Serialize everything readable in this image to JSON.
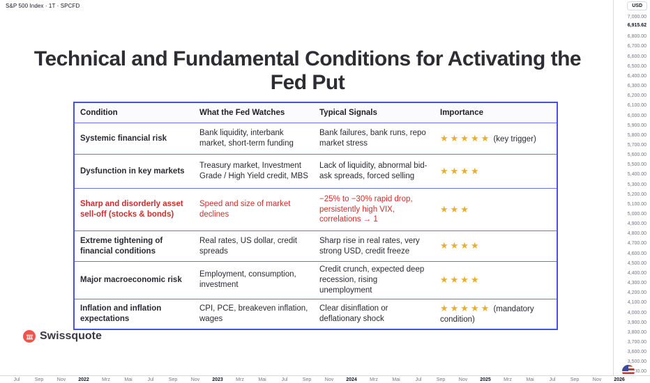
{
  "window": {
    "symbol_label": "S&P 500 Index · 1T · SPCFD"
  },
  "title": "Technical and Fundamental Conditions for Activating the Fed Put",
  "table": {
    "headers": [
      "Condition",
      "What the Fed Watches",
      "Typical Signals",
      "Importance"
    ],
    "rows": [
      {
        "condition": "Systemic financial risk",
        "watches": "Bank liquidity, interbank market, short-term funding",
        "signals": "Bank failures, bank runs, repo market stress",
        "stars": 5,
        "note": "(key trigger)",
        "highlight": false
      },
      {
        "condition": "Dysfunction in key markets",
        "watches": "Treasury market, Investment Grade / High Yield credit, MBS",
        "signals": "Lack of liquidity, abnormal bid-ask spreads, forced selling",
        "stars": 4,
        "note": "",
        "highlight": false
      },
      {
        "condition": "Sharp and disorderly asset sell-off (stocks & bonds)",
        "watches": "Speed and size of market declines",
        "signals": "−25% to −30% rapid drop, persistently high VIX, correlations → 1",
        "stars": 3,
        "note": "",
        "highlight": true
      },
      {
        "condition": "Extreme tightening of financial conditions",
        "watches": "Real rates, US dollar, credit spreads",
        "signals": "Sharp rise in real rates, very strong USD, credit freeze",
        "stars": 4,
        "note": "",
        "highlight": false
      },
      {
        "condition": "Major macroeconomic risk",
        "watches": "Employment, consumption, investment",
        "signals": "Credit crunch, expected deep recession, rising unemployment",
        "stars": 4,
        "note": "",
        "highlight": false
      },
      {
        "condition": "Inflation and inflation expectations",
        "watches": "CPI, PCE, breakeven inflation, wages",
        "signals": "Clear disinflation or deflationary shock",
        "stars": 5,
        "note": "(mandatory condition)",
        "highlight": false
      }
    ]
  },
  "price_axis": {
    "currency_label": "USD",
    "current_price": "6,915.62",
    "ticks": [
      "7,000.00",
      "6,800.00",
      "6,700.00",
      "6,600.00",
      "6,500.00",
      "6,400.00",
      "6,300.00",
      "6,200.00",
      "6,100.00",
      "6,000.00",
      "5,900.00",
      "5,800.00",
      "5,700.00",
      "5,600.00",
      "5,500.00",
      "5,400.00",
      "5,300.00",
      "5,200.00",
      "5,100.00",
      "5,000.00",
      "4,900.00",
      "4,800.00",
      "4,700.00",
      "4,600.00",
      "4,500.00",
      "4,400.00",
      "4,300.00",
      "4,200.00",
      "4,100.00",
      "4,000.00",
      "3,900.00",
      "3,800.00",
      "3,700.00",
      "3,600.00",
      "3,500.00",
      "3,400.00"
    ]
  },
  "time_axis": {
    "labels": [
      "Jul",
      "Sep",
      "Nov",
      "2022",
      "Mrz",
      "Mai",
      "Jul",
      "Sep",
      "Nov",
      "2023",
      "Mrz",
      "Mai",
      "Jul",
      "Sep",
      "Nov",
      "2024",
      "Mrz",
      "Mai",
      "Jul",
      "Sep",
      "Nov",
      "2025",
      "Mrz",
      "Mai",
      "Jul",
      "Sep",
      "Nov",
      "2026"
    ]
  },
  "branding": {
    "name": "Swissquote"
  },
  "colors": {
    "table_border": "#4553e0",
    "highlight_red": "#d22b2b",
    "star_gold": "#e8ae2e",
    "brand_orange": "#f2534b"
  }
}
